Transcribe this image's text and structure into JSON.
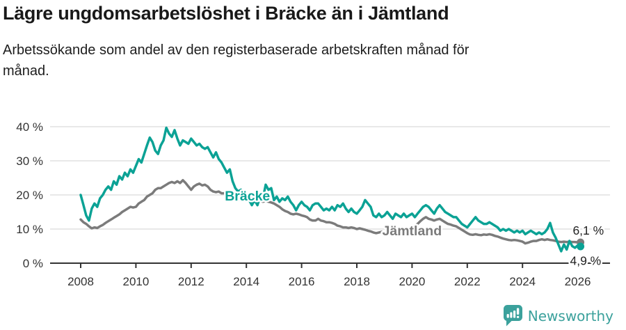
{
  "header": {
    "title": "Lägre ungdomsarbetslöshet i Bräcke än i Jämtland",
    "subtitle_lines": [
      "Arbetssökande som andel av den registerbaserade arbetskraften månad för",
      "månad."
    ]
  },
  "footer": {
    "brand": "Newsworthy"
  },
  "colors": {
    "teal": "#0ba295",
    "gray": "#7b7b7b",
    "grid": "#d9d9d9",
    "axis": "#333333",
    "value_label": "#222222",
    "logo_teal": "#3ba19c"
  },
  "chart_data": {
    "type": "line",
    "title": "Lägre ungdomsarbetslöshet i Bräcke än i Jämtland",
    "xlabel": "",
    "ylabel": "",
    "x_unit": "year (monthly data)",
    "y_unit": "percent",
    "x_start": 2008.0,
    "x_step": 0.1,
    "x_ticks": [
      2008,
      2010,
      2012,
      2014,
      2016,
      2018,
      2020,
      2022,
      2024,
      2026
    ],
    "y_ticks": [
      0,
      10,
      20,
      30,
      40
    ],
    "y_tick_labels": [
      "0 %",
      "10 %",
      "20 %",
      "30 %",
      "40 %"
    ],
    "xlim": [
      2006.9,
      2027.2
    ],
    "ylim": [
      0,
      42
    ],
    "grid": true,
    "legend": "inline-series-labels",
    "series": [
      {
        "name": "Jämtland",
        "color": "#7b7b7b",
        "label_pos": {
          "x": 2018.92,
          "y": 8.2
        },
        "end_label": "6,1 %",
        "end_label_pos": {
          "x": 2025.82,
          "y": 9.6
        },
        "values": [
          12.8,
          12.0,
          11.5,
          10.8,
          10.2,
          10.5,
          10.3,
          10.8,
          11.2,
          11.8,
          12.3,
          12.8,
          13.3,
          13.8,
          14.3,
          15.0,
          15.5,
          16.0,
          16.5,
          16.3,
          16.5,
          17.5,
          18.0,
          18.5,
          19.5,
          20.0,
          20.5,
          21.5,
          22.0,
          22.0,
          22.5,
          23.0,
          23.5,
          23.8,
          23.5,
          24.0,
          23.5,
          24.3,
          23.5,
          22.5,
          21.5,
          22.5,
          23.0,
          23.3,
          22.8,
          23.0,
          22.5,
          21.5,
          21.0,
          20.8,
          21.0,
          20.5,
          20.5,
          20.3,
          20.5,
          20.3,
          19.0,
          18.5,
          19.0,
          19.3,
          19.5,
          19.0,
          18.5,
          18.3,
          18.5,
          18.3,
          18.0,
          18.3,
          18.0,
          17.8,
          17.5,
          17.0,
          16.5,
          15.8,
          15.3,
          15.0,
          14.5,
          14.3,
          14.5,
          14.3,
          14.0,
          13.8,
          13.5,
          12.8,
          12.5,
          12.5,
          13.0,
          12.5,
          12.3,
          12.0,
          12.0,
          11.8,
          11.5,
          11.0,
          10.8,
          10.5,
          10.5,
          10.3,
          10.5,
          10.3,
          10.0,
          10.2,
          10.0,
          9.8,
          9.5,
          9.3,
          9.0,
          8.8,
          9.0,
          9.2,
          9.0,
          9.3,
          9.5,
          9.3,
          9.5,
          9.7,
          10.0,
          10.2,
          10.0,
          10.3,
          10.5,
          10.8,
          11.5,
          12.3,
          13.0,
          13.5,
          13.0,
          12.8,
          12.5,
          12.8,
          13.0,
          12.5,
          12.0,
          11.5,
          11.3,
          11.0,
          10.8,
          10.3,
          9.8,
          9.3,
          8.8,
          8.4,
          8.3,
          8.5,
          8.3,
          8.2,
          8.4,
          8.3,
          8.5,
          8.3,
          8.0,
          7.8,
          7.5,
          7.2,
          7.0,
          6.8,
          6.7,
          6.8,
          6.7,
          6.5,
          6.3,
          5.8,
          6.0,
          6.3,
          6.5,
          6.5,
          6.8,
          7.0,
          6.8,
          7.0,
          6.8,
          6.7,
          6.5,
          6.3,
          6.2,
          6.3,
          6.2,
          6.3,
          6.2,
          6.2,
          6.1,
          6.1
        ]
      },
      {
        "name": "Bräcke",
        "color": "#0ba295",
        "label_pos": {
          "x": 2013.22,
          "y": 18.4
        },
        "end_label": "4,9 %",
        "end_label_pos": {
          "x": 2025.72,
          "y": 0.7
        },
        "values": [
          20.0,
          17.0,
          14.0,
          12.5,
          16.0,
          17.5,
          16.5,
          19.0,
          20.0,
          21.5,
          22.5,
          21.5,
          24.0,
          23.0,
          25.5,
          24.5,
          26.5,
          25.5,
          27.5,
          26.5,
          28.5,
          30.5,
          29.5,
          32.0,
          34.5,
          36.8,
          35.5,
          33.0,
          32.0,
          34.5,
          36.0,
          39.7,
          38.0,
          37.0,
          39.0,
          36.5,
          34.5,
          36.0,
          35.5,
          35.0,
          36.5,
          35.5,
          34.5,
          35.0,
          34.0,
          33.5,
          34.0,
          32.5,
          31.0,
          32.5,
          30.5,
          29.5,
          28.0,
          26.5,
          27.5,
          24.0,
          22.0,
          21.0,
          21.5,
          20.5,
          20.0,
          18.5,
          17.0,
          18.5,
          17.0,
          19.5,
          19.0,
          23.0,
          21.5,
          22.0,
          18.5,
          19.5,
          18.0,
          19.0,
          18.5,
          19.5,
          18.0,
          17.0,
          15.5,
          17.0,
          18.0,
          17.0,
          16.5,
          15.5,
          17.0,
          17.5,
          17.5,
          16.5,
          15.5,
          16.0,
          15.5,
          16.5,
          15.5,
          17.0,
          16.5,
          17.5,
          16.0,
          15.0,
          16.0,
          15.0,
          14.5,
          15.5,
          16.5,
          18.5,
          17.5,
          16.5,
          14.0,
          13.5,
          14.5,
          13.5,
          14.0,
          15.0,
          14.0,
          13.0,
          14.5,
          14.0,
          13.5,
          14.5,
          13.5,
          14.0,
          14.5,
          13.5,
          14.5,
          15.5,
          16.5,
          17.0,
          16.5,
          15.5,
          14.5,
          16.0,
          17.0,
          16.0,
          15.0,
          14.5,
          14.0,
          13.5,
          13.5,
          12.5,
          11.5,
          11.0,
          10.5,
          11.5,
          12.5,
          13.5,
          12.5,
          12.0,
          11.5,
          11.5,
          12.0,
          11.5,
          11.0,
          10.5,
          9.5,
          10.0,
          9.5,
          10.0,
          9.5,
          9.0,
          9.5,
          9.0,
          9.5,
          8.5,
          9.0,
          9.5,
          9.0,
          8.5,
          9.0,
          8.5,
          9.0,
          10.0,
          11.8,
          9.0,
          7.5,
          5.5,
          3.5,
          5.5,
          4.0,
          6.5,
          5.0,
          4.5,
          5.2,
          4.9
        ]
      }
    ]
  }
}
